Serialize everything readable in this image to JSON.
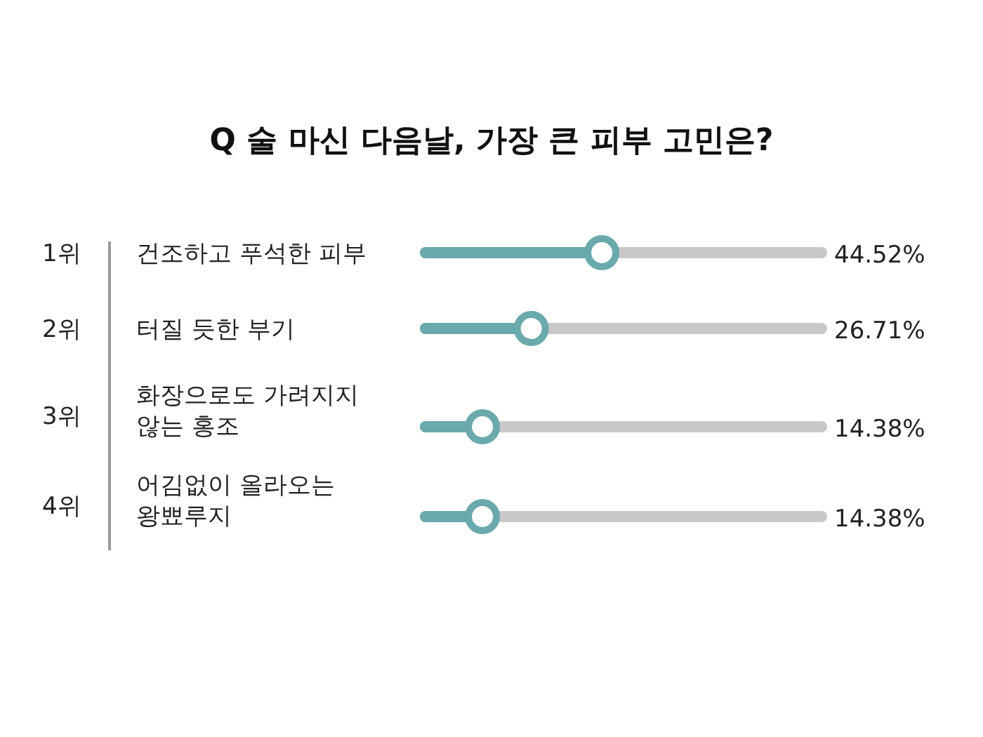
{
  "chart_data": {
    "type": "lollipop",
    "orientation": "horizontal",
    "title": "Q 술 마신 다음날, 가장 큰 피부 고민은?",
    "categories": [
      "건조하고 푸석한 피부",
      "터질 듯한 부기",
      "화장으로도 가려지지 않는 홍조",
      "어김없이 올라오는 왕뾰루지"
    ],
    "annotations": [
      "1위",
      "2위",
      "3위",
      "4위"
    ],
    "values": [
      44.52,
      26.71,
      14.38,
      14.38
    ],
    "value_labels": [
      "44.52%",
      "26.71%",
      "14.38%",
      "14.38%"
    ],
    "color": "#6aa9ac",
    "marker": "circle",
    "grid": true
  }
}
